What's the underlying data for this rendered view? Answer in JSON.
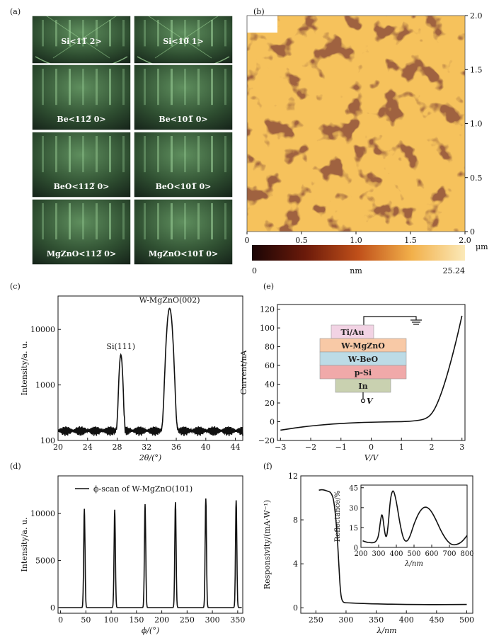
{
  "panels": {
    "a": {
      "label": "(a)",
      "tiles": [
        "Si<11̅ 2>",
        "Si<10̅ 1>",
        "Be<112̅ 0>",
        "Be<101̅ 0>",
        "BeO<112̅ 0>",
        "BeO<101̅ 0>",
        "MgZnO<112̅ 0>",
        "MgZnO<101̅ 0>"
      ]
    },
    "b": {
      "label": "(b)",
      "unit": "μm",
      "colorbar_min": "0",
      "colorbar_unit": "nm",
      "colorbar_max": "25.24",
      "x_ticks": [
        "0",
        "0.5",
        "1.0",
        "1.5",
        "2.0"
      ],
      "y_ticks": [
        "0",
        "0.5",
        "1.0",
        "1.5",
        "2.0"
      ]
    },
    "e": {
      "layers": [
        "Ti/Au",
        "W-MgZnO",
        "W-BeO",
        "p-Si",
        "In"
      ],
      "bias": "V"
    }
  },
  "chart_data": [
    {
      "panel": "(c)",
      "type": "line",
      "xlabel": "2θ/(°)",
      "ylabel": "Intensity/a. u.",
      "xlim": [
        20,
        45
      ],
      "ylim": [
        100,
        40000
      ],
      "yscale": "log",
      "x_ticks": [
        "20",
        "24",
        "28",
        "32",
        "36",
        "40",
        "44"
      ],
      "y_ticks": [
        "100",
        "1000",
        "10000"
      ],
      "baseline": 150,
      "peaks": [
        {
          "label": "Si(111)",
          "x": 28.5,
          "y": 3500
        },
        {
          "label": "W-MgZnO(002)",
          "x": 35.1,
          "y": 24000
        }
      ]
    },
    {
      "panel": "(d)",
      "type": "line",
      "xlabel": "ϕ/(°)",
      "ylabel": "Intensity/a. u.",
      "xlim": [
        -5,
        360
      ],
      "ylim": [
        -600,
        14000
      ],
      "x_ticks": [
        "0",
        "50",
        "100",
        "150",
        "200",
        "250",
        "300",
        "350"
      ],
      "y_ticks": [
        "0",
        "5000",
        "10000"
      ],
      "legend": "ϕ-scan of W-MgZnO(101)",
      "legend_position": "top-left",
      "peaks": [
        {
          "x": 47,
          "y": 10500
        },
        {
          "x": 107,
          "y": 10400
        },
        {
          "x": 167,
          "y": 11000
        },
        {
          "x": 227,
          "y": 11200
        },
        {
          "x": 287,
          "y": 11600
        },
        {
          "x": 347,
          "y": 11400
        }
      ]
    },
    {
      "panel": "(e)",
      "type": "line",
      "xlabel": "V/V",
      "ylabel": "Current/nA",
      "xlim": [
        -3.1,
        3.1
      ],
      "ylim": [
        -20,
        125
      ],
      "x_ticks": [
        "−3",
        "−2",
        "−1",
        "0",
        "1",
        "2",
        "3"
      ],
      "y_ticks": [
        "−20",
        "0",
        "20",
        "40",
        "60",
        "80",
        "100",
        "120"
      ],
      "series": [
        {
          "x": [
            -3,
            -2.5,
            -2,
            -1.5,
            -1,
            -0.5,
            0,
            0.5,
            1,
            1.5,
            1.8,
            2.0,
            2.2,
            2.4,
            2.6,
            2.8,
            3.0
          ],
          "y": [
            -9,
            -6.5,
            -4.5,
            -3,
            -1.8,
            -1,
            -0.5,
            -0.2,
            0,
            1,
            3,
            8,
            20,
            38,
            60,
            85,
            113
          ]
        }
      ]
    },
    {
      "panel": "(f)",
      "type": "line",
      "xlabel": "λ/nm",
      "ylabel": "Responsivity/(mA·W⁻¹)",
      "xlim": [
        225,
        510
      ],
      "ylim": [
        -0.5,
        12
      ],
      "x_ticks": [
        "250",
        "300",
        "350",
        "400",
        "450",
        "500"
      ],
      "y_ticks": [
        "0",
        "4",
        "8",
        "12"
      ],
      "series": [
        {
          "x": [
            255,
            260,
            265,
            270,
            275,
            280,
            285,
            288,
            290,
            292,
            295,
            300,
            320,
            350,
            400,
            450,
            500
          ],
          "y": [
            10.7,
            10.75,
            10.7,
            10.6,
            10.5,
            9.8,
            7.0,
            4.0,
            2.0,
            0.9,
            0.5,
            0.45,
            0.4,
            0.35,
            0.3,
            0.28,
            0.3
          ]
        }
      ],
      "inset": {
        "type": "line",
        "xlabel": "λ/nm",
        "ylabel": "Reflectance/%",
        "xlim": [
          200,
          800
        ],
        "ylim": [
          0,
          47
        ],
        "x_ticks": [
          "200",
          "300",
          "400",
          "500",
          "600",
          "700",
          "800"
        ],
        "y_ticks": [
          "0",
          "15",
          "30",
          "45"
        ],
        "series": [
          {
            "x": [
              210,
              230,
              250,
              270,
              280,
              290,
              300,
              310,
              320,
              335,
              345,
              355,
              365,
              375,
              385,
              400,
              420,
              440,
              460,
              480,
              500,
              530,
              560,
              590,
              620,
              650,
              680,
              710,
              740,
              770,
              800
            ],
            "y": [
              5,
              4,
              3.5,
              3.5,
              4,
              5.5,
              9,
              20,
              27,
              10,
              7,
              18,
              35,
              42,
              43,
              35,
              18,
              6,
              4,
              9,
              18,
              27,
              31,
              29,
              22,
              13,
              6,
              2,
              2,
              4,
              9
            ]
          }
        ]
      }
    }
  ]
}
